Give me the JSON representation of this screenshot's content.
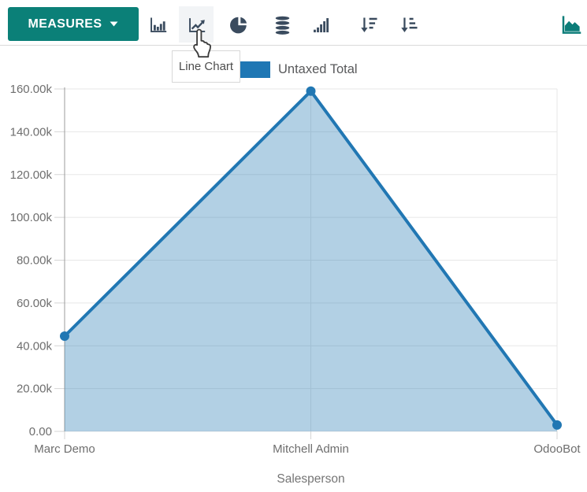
{
  "toolbar": {
    "measures_label": "MEASURES",
    "tooltip": "Line Chart",
    "icons": [
      "bar-chart",
      "line-chart",
      "pie-chart",
      "stacked",
      "cumulative",
      "sort-descending",
      "sort-ascending"
    ],
    "view_switcher_icon": "area-chart"
  },
  "legend": {
    "label": "Untaxed Total"
  },
  "colors": {
    "accent_teal": "#0b8078",
    "icon_dark": "#3a4b5e",
    "line_blue": "#2177b3",
    "legend_blue": "#1f77b4",
    "fill_blue": "rgba(33,119,179,0.35)",
    "grid": "#e7e7e7",
    "axis_line": "#9b9b9b",
    "tick_mark": "#d4d4d4"
  },
  "chart_data": {
    "type": "area",
    "title": "",
    "categories": [
      "Marc Demo",
      "Mitchell Admin",
      "OdooBot"
    ],
    "series": [
      {
        "name": "Untaxed Total",
        "values": [
          44500,
          159000,
          3000
        ]
      }
    ],
    "xlabel": "Salesperson",
    "ylabel": "",
    "ylim": [
      0,
      160000
    ],
    "y_tick_step": 20000,
    "y_tick_labels": [
      "0.00",
      "20.00k",
      "40.00k",
      "60.00k",
      "80.00k",
      "100.00k",
      "120.00k",
      "140.00k",
      "160.00k"
    ],
    "grid": true,
    "legend_position": "top"
  }
}
